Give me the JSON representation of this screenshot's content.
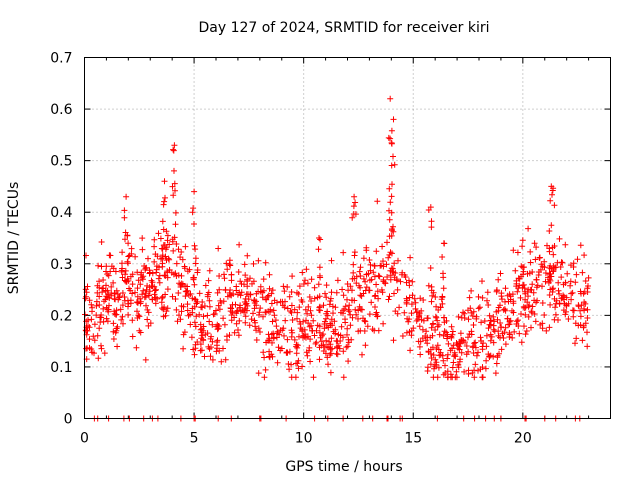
{
  "chart_data": {
    "type": "scatter",
    "title": "Day 127 of 2024, SRMTID for receiver kiri",
    "xlabel": "GPS time / hours",
    "ylabel": "SRMTID / TECUs",
    "xlim": [
      0,
      24
    ],
    "ylim": [
      0,
      0.7
    ],
    "xticks": [
      0,
      5,
      10,
      15,
      20
    ],
    "yticks": [
      0,
      0.1,
      0.2,
      0.3,
      0.4,
      0.5,
      0.6,
      0.7
    ],
    "xtick_labels": [
      "0",
      "5",
      "10",
      "15",
      "20"
    ],
    "ytick_labels": [
      "0",
      "0.1",
      "0.2",
      "0.3",
      "0.4",
      "0.5",
      "0.6",
      "0.7"
    ],
    "grid": true,
    "marker": "+",
    "series": [
      {
        "name": "SRMTID",
        "color": "#ff0000",
        "profile": [
          {
            "h": 0.0,
            "y": 0.2
          },
          {
            "h": 0.5,
            "y": 0.19
          },
          {
            "h": 1.0,
            "y": 0.25
          },
          {
            "h": 1.5,
            "y": 0.24
          },
          {
            "h": 2.0,
            "y": 0.27
          },
          {
            "h": 2.5,
            "y": 0.22
          },
          {
            "h": 3.0,
            "y": 0.25
          },
          {
            "h": 3.5,
            "y": 0.28
          },
          {
            "h": 4.0,
            "y": 0.3
          },
          {
            "h": 4.5,
            "y": 0.24
          },
          {
            "h": 5.0,
            "y": 0.21
          },
          {
            "h": 5.5,
            "y": 0.19
          },
          {
            "h": 6.0,
            "y": 0.2
          },
          {
            "h": 6.5,
            "y": 0.21
          },
          {
            "h": 7.0,
            "y": 0.22
          },
          {
            "h": 7.5,
            "y": 0.23
          },
          {
            "h": 8.0,
            "y": 0.2
          },
          {
            "h": 8.5,
            "y": 0.19
          },
          {
            "h": 9.0,
            "y": 0.18
          },
          {
            "h": 9.5,
            "y": 0.18
          },
          {
            "h": 10.0,
            "y": 0.18
          },
          {
            "h": 10.5,
            "y": 0.19
          },
          {
            "h": 11.0,
            "y": 0.17
          },
          {
            "h": 11.5,
            "y": 0.17
          },
          {
            "h": 12.0,
            "y": 0.19
          },
          {
            "h": 12.5,
            "y": 0.23
          },
          {
            "h": 13.0,
            "y": 0.25
          },
          {
            "h": 13.5,
            "y": 0.26
          },
          {
            "h": 14.0,
            "y": 0.3
          },
          {
            "h": 14.5,
            "y": 0.24
          },
          {
            "h": 15.0,
            "y": 0.2
          },
          {
            "h": 15.5,
            "y": 0.18
          },
          {
            "h": 16.0,
            "y": 0.15
          },
          {
            "h": 16.5,
            "y": 0.13
          },
          {
            "h": 17.0,
            "y": 0.13
          },
          {
            "h": 17.5,
            "y": 0.14
          },
          {
            "h": 18.0,
            "y": 0.16
          },
          {
            "h": 18.5,
            "y": 0.17
          },
          {
            "h": 19.0,
            "y": 0.17
          },
          {
            "h": 19.5,
            "y": 0.21
          },
          {
            "h": 20.0,
            "y": 0.25
          },
          {
            "h": 20.5,
            "y": 0.24
          },
          {
            "h": 21.0,
            "y": 0.26
          },
          {
            "h": 21.5,
            "y": 0.26
          },
          {
            "h": 22.0,
            "y": 0.24
          },
          {
            "h": 22.5,
            "y": 0.22
          },
          {
            "h": 23.0,
            "y": 0.21
          }
        ],
        "spikes": [
          {
            "h": 1.9,
            "y": 0.43
          },
          {
            "h": 3.65,
            "y": 0.46
          },
          {
            "h": 4.1,
            "y": 0.53
          },
          {
            "h": 5.0,
            "y": 0.44
          },
          {
            "h": 10.7,
            "y": 0.35
          },
          {
            "h": 12.3,
            "y": 0.43
          },
          {
            "h": 13.95,
            "y": 0.62
          },
          {
            "h": 14.1,
            "y": 0.58
          },
          {
            "h": 15.8,
            "y": 0.41
          },
          {
            "h": 16.4,
            "y": 0.34
          },
          {
            "h": 21.3,
            "y": 0.45
          }
        ],
        "zero_points_h": [
          0.45,
          0.6,
          1.1,
          1.8,
          2.05,
          2.7,
          3.1,
          3.35,
          4.4,
          5.0,
          5.05,
          6.1,
          6.7,
          8.0,
          8.05,
          9.2,
          10.5,
          11.1,
          11.8,
          12.7,
          13.15,
          13.8,
          13.85,
          14.4,
          14.5,
          16.1,
          17.3,
          17.8,
          18.3,
          18.7,
          19.0,
          20.1,
          20.15,
          21.0,
          21.5,
          22.4,
          22.6
        ]
      }
    ]
  }
}
